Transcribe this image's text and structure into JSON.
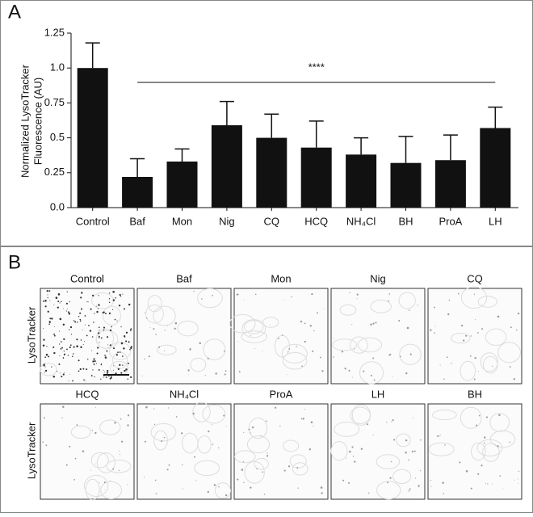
{
  "panel_a": {
    "label": "A"
  },
  "chart_data": {
    "type": "bar",
    "ylabel": [
      "Normalized LysoTracker",
      "Fluorescence (AU)"
    ],
    "categories": [
      "Control",
      "Baf",
      "Mon",
      "Nig",
      "CQ",
      "HCQ",
      "NH₄Cl",
      "BH",
      "ProA",
      "LH"
    ],
    "values": [
      1.0,
      0.22,
      0.33,
      0.59,
      0.5,
      0.43,
      0.38,
      0.32,
      0.34,
      0.57
    ],
    "errors": [
      0.18,
      0.13,
      0.09,
      0.17,
      0.17,
      0.19,
      0.12,
      0.19,
      0.18,
      0.15
    ],
    "color": "#111111",
    "ylim": [
      0,
      1.25
    ],
    "yticks": [
      {
        "value": 0,
        "label": "0.0"
      },
      0.25,
      0.5,
      0.75,
      {
        "value": 1,
        "label": "1.0"
      },
      1.25
    ],
    "annotation": "****"
  },
  "panel_b": {
    "label": "B",
    "rows": [
      {
        "label": "LysoTracker",
        "images": [
          "Control",
          "Baf",
          "Mon",
          "Nig",
          "CQ"
        ]
      },
      {
        "label": "LysoTracker",
        "images": [
          "HCQ",
          "NH₄Cl",
          "ProA",
          "LH",
          "BH"
        ]
      }
    ]
  }
}
